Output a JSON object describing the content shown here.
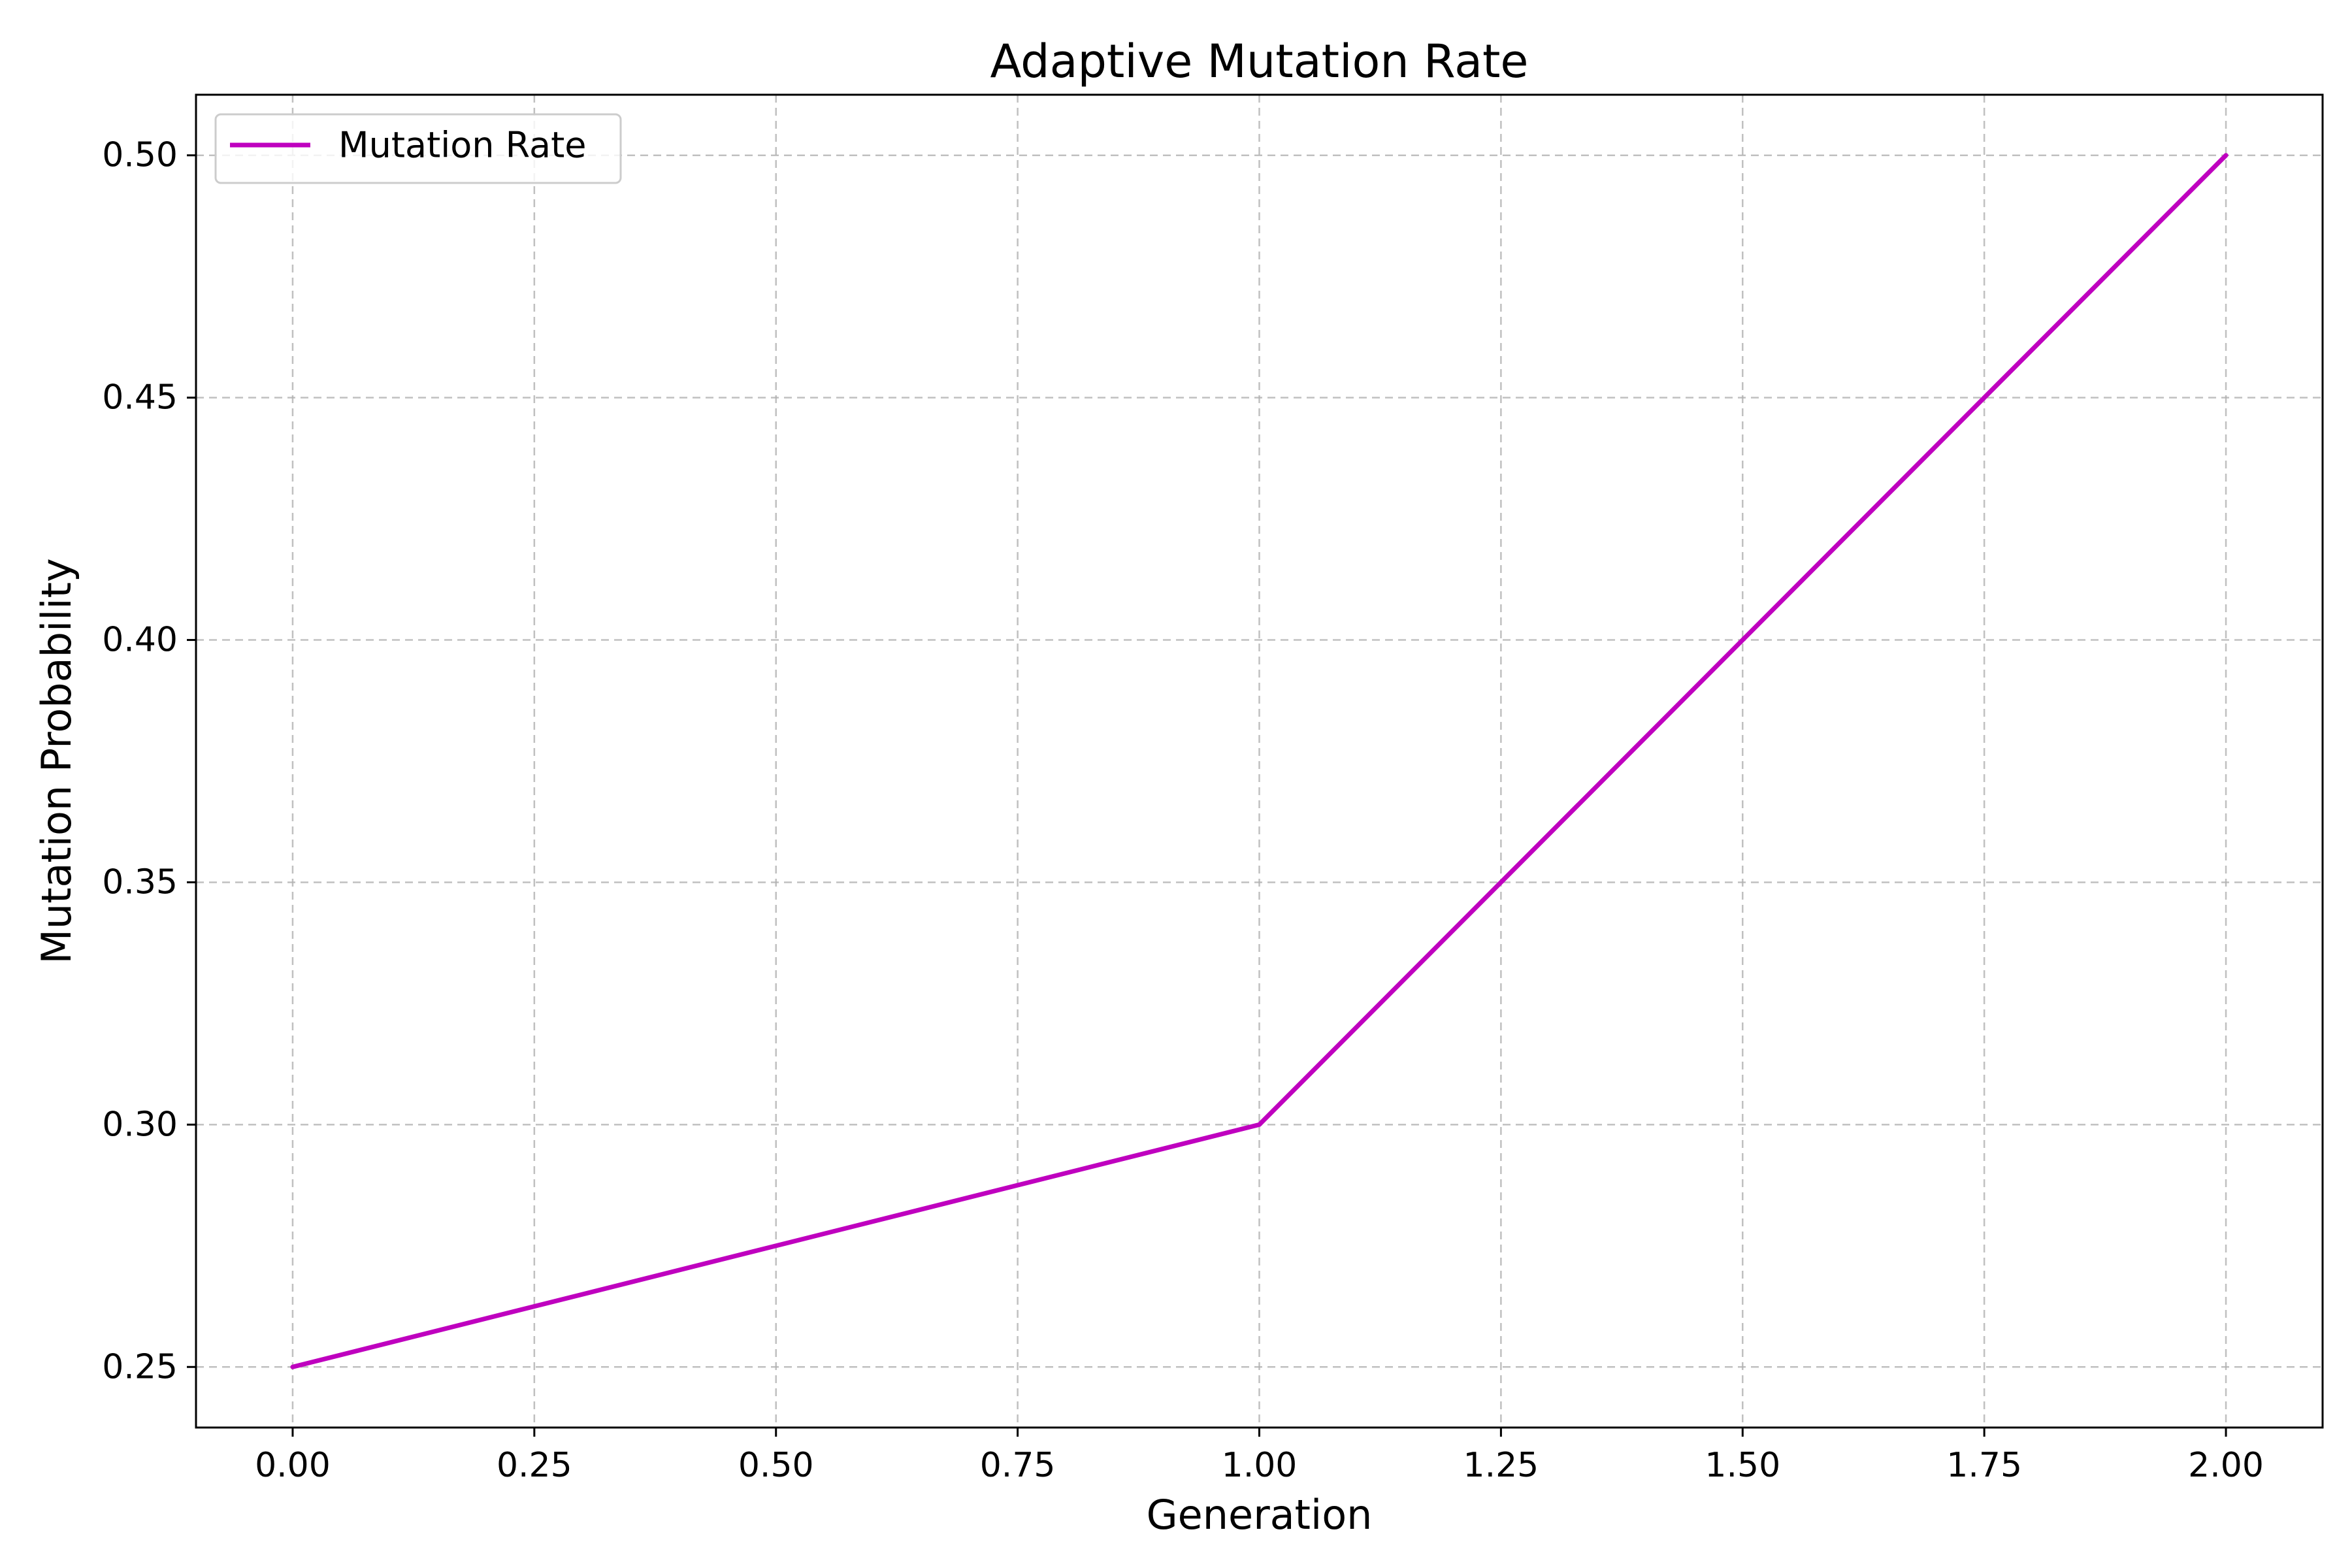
{
  "chart_data": {
    "type": "line",
    "title": "Adaptive Mutation Rate",
    "xlabel": "Generation",
    "ylabel": "Mutation Probability",
    "xlim": [
      -0.1,
      2.1
    ],
    "ylim": [
      0.2375,
      0.5125
    ],
    "xticks": [
      0.0,
      0.25,
      0.5,
      0.75,
      1.0,
      1.25,
      1.5,
      1.75,
      2.0
    ],
    "xtick_labels": [
      "0.00",
      "0.25",
      "0.50",
      "0.75",
      "1.00",
      "1.25",
      "1.50",
      "1.75",
      "2.00"
    ],
    "yticks": [
      0.25,
      0.3,
      0.35,
      0.4,
      0.45,
      0.5
    ],
    "ytick_labels": [
      "0.25",
      "0.30",
      "0.35",
      "0.40",
      "0.45",
      "0.50"
    ],
    "grid": true,
    "legend_position": "upper-left",
    "series": [
      {
        "name": "Mutation Rate",
        "color": "#bf00bf",
        "x": [
          0,
          1,
          2
        ],
        "y": [
          0.25,
          0.3,
          0.5
        ]
      }
    ]
  }
}
